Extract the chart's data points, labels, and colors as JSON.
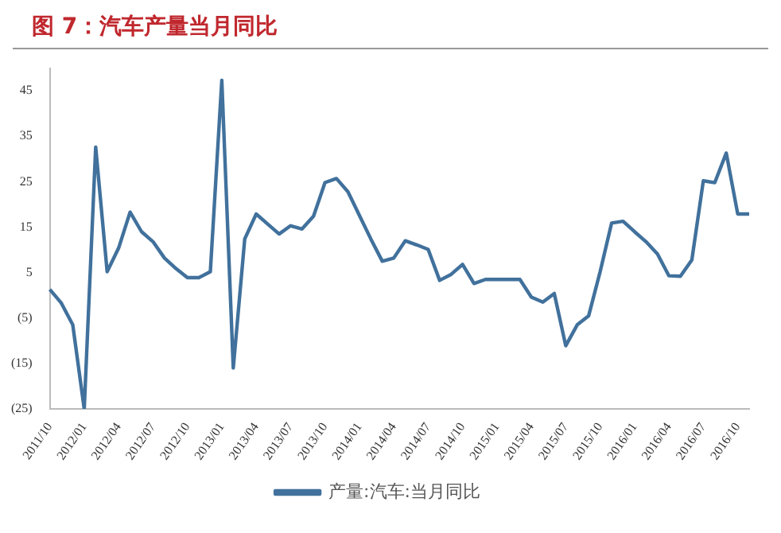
{
  "chart_data": {
    "type": "line",
    "title": "图 7：汽车产量当月同比",
    "categories": [
      "2011/10",
      null,
      null,
      "2012/01",
      null,
      null,
      "2012/04",
      null,
      null,
      "2012/07",
      null,
      null,
      "2012/10",
      null,
      null,
      "2013/01",
      null,
      null,
      "2013/04",
      null,
      null,
      "2013/07",
      null,
      null,
      "2013/10",
      null,
      null,
      "2014/01",
      null,
      null,
      "2014/04",
      null,
      null,
      "2014/07",
      null,
      null,
      "2014/10",
      null,
      null,
      "2015/01",
      null,
      null,
      "2015/04",
      null,
      null,
      "2015/07",
      null,
      null,
      "2015/10",
      null,
      null,
      "2016/01",
      null,
      null,
      "2016/04",
      null,
      null,
      "2016/07",
      null,
      null,
      "2016/10",
      null
    ],
    "series": [
      {
        "name": "产量:汽车:当月同比",
        "color": "#41719c",
        "values": [
          1.3,
          -1.7,
          -6.5,
          -25,
          32.6,
          5.2,
          10.4,
          18.3,
          14,
          11.8,
          8.2,
          5.9,
          3.9,
          3.9,
          5.2,
          47.3,
          -16,
          12.4,
          17.9,
          15.7,
          13.5,
          15.3,
          14.6,
          17.4,
          24.8,
          25.7,
          22.8,
          17.6,
          12.4,
          7.5,
          8.2,
          12,
          11.1,
          10.1,
          3.3,
          4.6,
          6.8,
          2.6,
          3.5,
          3.5,
          3.5,
          3.5,
          -0.4,
          -1.5,
          0.4,
          -11.1,
          -6.5,
          -4.5,
          5.2,
          15.9,
          16.3,
          14,
          11.8,
          9.1,
          4.3,
          4.2,
          7.8,
          25.2,
          24.8,
          31.3,
          17.9,
          17.9
        ]
      }
    ],
    "ylim": [
      -25,
      50
    ],
    "yticks": [
      {
        "value": -25,
        "label": "(25)"
      },
      {
        "value": -15,
        "label": "(15)"
      },
      {
        "value": -5,
        "label": "(5)"
      },
      5,
      15,
      25,
      35,
      45
    ],
    "grid": false,
    "legend": "bottom",
    "marker": "none",
    "line_style": "solid"
  }
}
